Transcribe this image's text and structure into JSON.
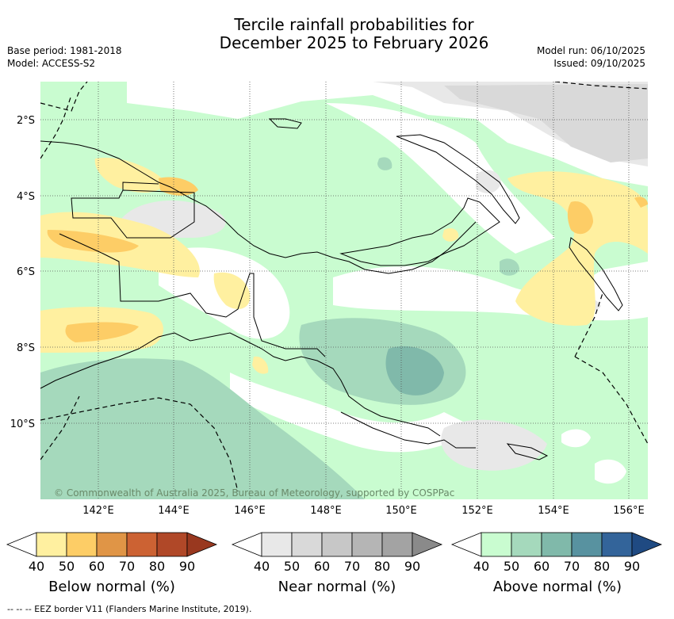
{
  "title": {
    "line1": "Tercile rainfall probabilities for",
    "line2": "December 2025 to February 2026"
  },
  "meta_left": {
    "base_period": "Base period: 1981-2018",
    "model": "Model: ACCESS-S2"
  },
  "meta_right": {
    "model_run": "Model run: 06/10/2025",
    "issued": "Issued: 09/10/2025"
  },
  "map": {
    "lat_labels": [
      "2°S",
      "4°S",
      "6°S",
      "8°S",
      "10°S"
    ],
    "lon_labels": [
      "142°E",
      "144°E",
      "146°E",
      "148°E",
      "150°E",
      "152°E",
      "154°E",
      "156°E"
    ],
    "copyright": "© Commonwealth of Australia 2025, Bureau of Meteorology, supported by COSPPac"
  },
  "colorbars": [
    {
      "label": "Below normal (%)",
      "ticks": [
        "40",
        "50",
        "60",
        "70",
        "80",
        "90"
      ],
      "colors": [
        "#fff0a0",
        "#fdcd66",
        "#e09546",
        "#cc6233",
        "#b04828",
        "#99381f"
      ]
    },
    {
      "label": "Near normal (%)",
      "ticks": [
        "40",
        "50",
        "60",
        "70",
        "80",
        "90"
      ],
      "colors": [
        "#e8e8e8",
        "#d9d9d9",
        "#c7c7c7",
        "#b5b5b5",
        "#a3a3a3",
        "#8a8a8a"
      ]
    },
    {
      "label": "Above normal (%)",
      "ticks": [
        "40",
        "50",
        "60",
        "70",
        "80",
        "90"
      ],
      "colors": [
        "#c9fcd0",
        "#a5d9bc",
        "#80b9aa",
        "#5892a0",
        "#33649a",
        "#1f4a82"
      ]
    }
  ],
  "footer": "--  --  -- EEZ border V11 (Flanders Marine Institute, 2019)."
}
